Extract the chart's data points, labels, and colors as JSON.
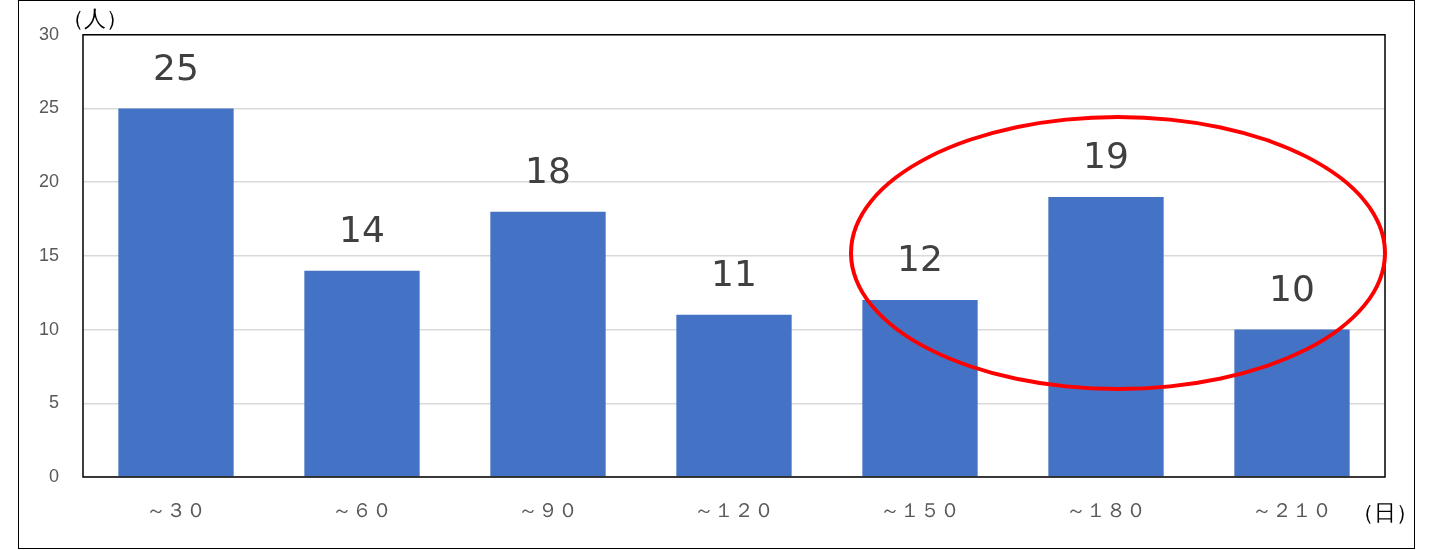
{
  "chart_data": {
    "type": "bar",
    "xlabel": "（日）",
    "ylabel": "（人）",
    "categories": [
      "～３０",
      "～６０",
      "～９０",
      "～１２０",
      "～１５０",
      "～１８０",
      "～２１０"
    ],
    "values": [
      25,
      14,
      18,
      11,
      12,
      19,
      10
    ],
    "color": "#4472c4",
    "ylim": [
      0,
      30
    ],
    "yticks": [
      0,
      5,
      10,
      15,
      20,
      25,
      30
    ],
    "grid": "y",
    "data_labels": true
  }
}
